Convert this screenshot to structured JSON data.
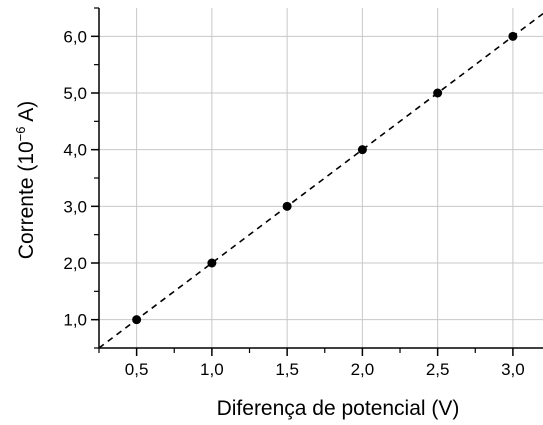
{
  "chart_data": {
    "type": "scatter",
    "title": "",
    "xlabel": "Diferença de potencial (V)",
    "ylabel_main": "Corrente (10",
    "ylabel_exp": "−6",
    "ylabel_unit": " A)",
    "xlim": [
      0.25,
      3.2
    ],
    "ylim": [
      0.5,
      6.5
    ],
    "grid": true,
    "x_ticks": [
      0.5,
      1.0,
      1.5,
      2.0,
      2.5,
      3.0
    ],
    "x_tick_labels": [
      "0,5",
      "1,0",
      "1,5",
      "2,0",
      "2,5",
      "3,0"
    ],
    "y_ticks": [
      1.0,
      2.0,
      3.0,
      4.0,
      5.0,
      6.0
    ],
    "y_tick_labels": [
      "1,0",
      "2,0",
      "3,0",
      "4,0",
      "5,0",
      "6,0"
    ],
    "series": [
      {
        "x": [
          0.5,
          1.0,
          1.5,
          2.0,
          2.5,
          3.0
        ],
        "y": [
          1.0,
          2.0,
          3.0,
          4.0,
          5.0,
          6.0
        ]
      }
    ],
    "fit_line": {
      "slope": 2.0,
      "intercept": 0.0,
      "style": "dashed"
    }
  }
}
